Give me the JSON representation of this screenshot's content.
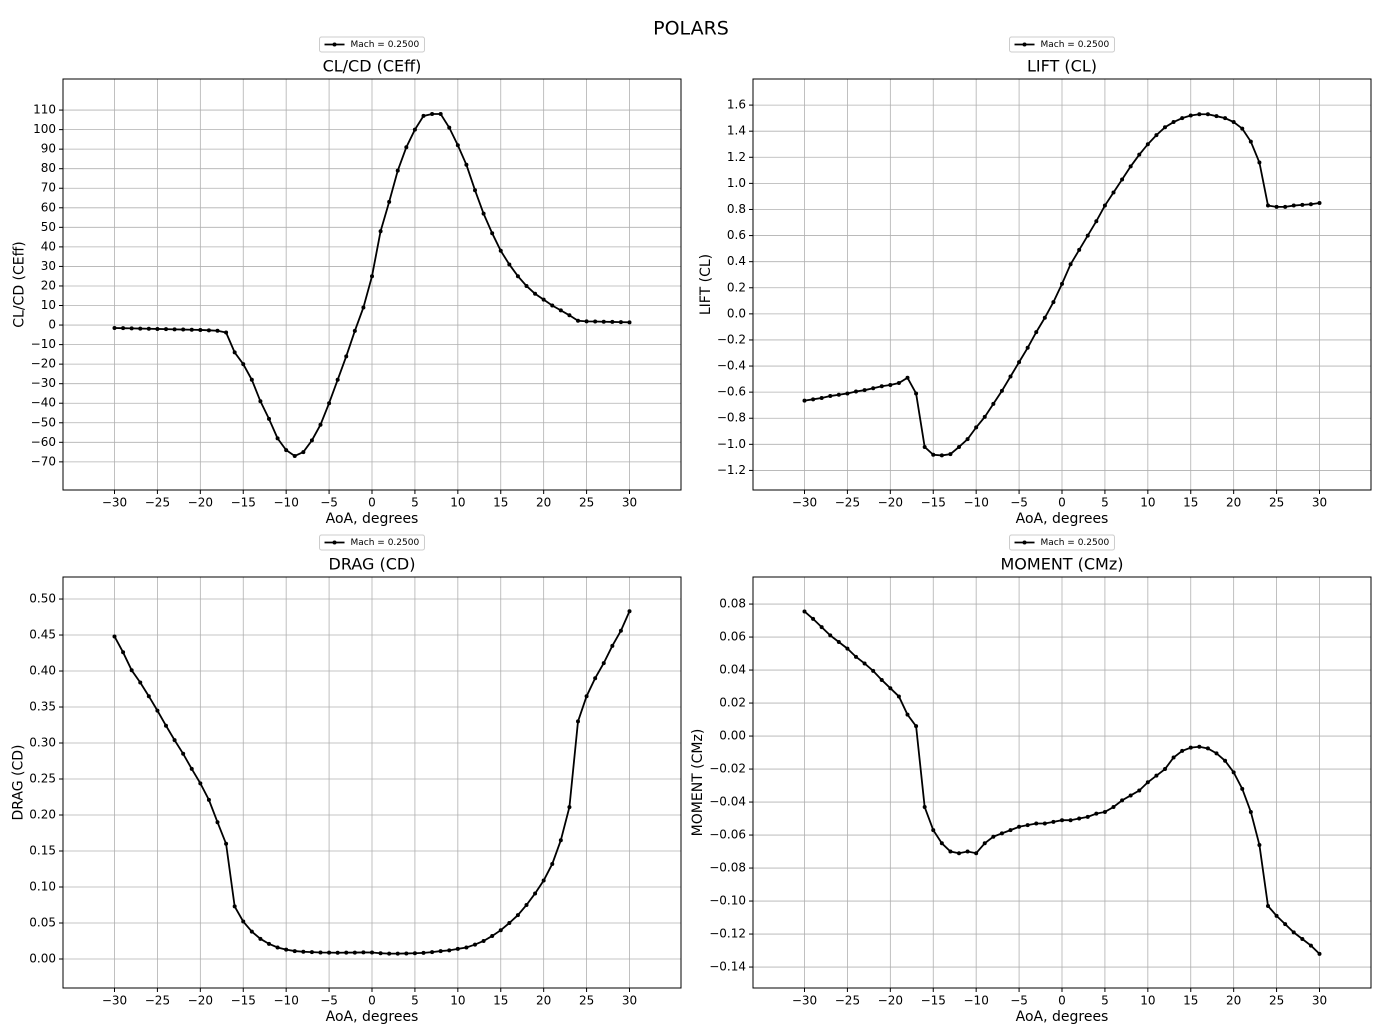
{
  "title": "POLARS",
  "chart_data": [
    {
      "type": "line",
      "title": "CL/CD (CEff)",
      "x_label": "AoA, degrees",
      "y_label": "CL/CD (CEff)",
      "x": [
        -30,
        -29,
        -28,
        -27,
        -26,
        -25,
        -24,
        -23,
        -22,
        -21,
        -20,
        -19,
        -18,
        -17,
        -16,
        -15,
        -14,
        -13,
        -12,
        -11,
        -10,
        -9,
        -8,
        -7,
        -6,
        -5,
        -4,
        -3,
        -2,
        -1,
        0,
        1,
        2,
        3,
        4,
        5,
        6,
        7,
        8,
        9,
        10,
        11,
        12,
        13,
        14,
        15,
        16,
        17,
        18,
        19,
        20,
        21,
        22,
        23,
        24,
        25,
        26,
        27,
        28,
        29,
        30
      ],
      "series": [
        {
          "name": "Mach = 0.2500",
          "color": "#000000",
          "values": [
            -1.5,
            -1.6,
            -1.7,
            -1.8,
            -1.9,
            -2.0,
            -2.1,
            -2.2,
            -2.3,
            -2.4,
            -2.5,
            -2.7,
            -2.9,
            -3.8,
            -14,
            -20,
            -28,
            -39,
            -48,
            -58,
            -64,
            -67,
            -65,
            -59,
            -51,
            -40,
            -28,
            -16,
            -3,
            9,
            25,
            48,
            63,
            79,
            91,
            100,
            107,
            108,
            108,
            101,
            92,
            82,
            69,
            57,
            47,
            38,
            31,
            25,
            20,
            16,
            13,
            10,
            7.5,
            5,
            2.2,
            1.9,
            1.8,
            1.7,
            1.6,
            1.5,
            1.4
          ]
        }
      ],
      "xlim": [
        -36,
        36
      ],
      "ylim": [
        -84.4,
        125.9
      ],
      "xticks": [
        {
          "value": -30,
          "label": "−30"
        },
        {
          "value": -25,
          "label": "−25"
        },
        {
          "value": -20,
          "label": "−20"
        },
        {
          "value": -15,
          "label": "−15"
        },
        {
          "value": -10,
          "label": "−10"
        },
        {
          "value": -5,
          "label": "−5"
        },
        0,
        5,
        10,
        15,
        20,
        25,
        30
      ],
      "yticks": [
        {
          "value": -70,
          "label": "−70"
        },
        {
          "value": -60,
          "label": "−60"
        },
        {
          "value": -50,
          "label": "−50"
        },
        {
          "value": -40,
          "label": "−40"
        },
        {
          "value": -30,
          "label": "−30"
        },
        {
          "value": -20,
          "label": "−20"
        },
        {
          "value": -10,
          "label": "−10"
        },
        0,
        10,
        20,
        30,
        40,
        50,
        60,
        70,
        80,
        90,
        100,
        110
      ],
      "grid": true,
      "legend": "upper center"
    },
    {
      "type": "line",
      "title": "LIFT (CL)",
      "x_label": "AoA, degrees",
      "y_label": "LIFT (CL)",
      "x": [
        -30,
        -29,
        -28,
        -27,
        -26,
        -25,
        -24,
        -23,
        -22,
        -21,
        -20,
        -19,
        -18,
        -17,
        -16,
        -15,
        -14,
        -13,
        -12,
        -11,
        -10,
        -9,
        -8,
        -7,
        -6,
        -5,
        -4,
        -3,
        -2,
        -1,
        0,
        1,
        2,
        3,
        4,
        5,
        6,
        7,
        8,
        9,
        10,
        11,
        12,
        13,
        14,
        15,
        16,
        17,
        18,
        19,
        20,
        21,
        22,
        23,
        24,
        25,
        26,
        27,
        28,
        29,
        30
      ],
      "series": [
        {
          "name": "Mach = 0.2500",
          "color": "#000000",
          "values": [
            -0.665,
            -0.655,
            -0.645,
            -0.63,
            -0.62,
            -0.61,
            -0.595,
            -0.585,
            -0.57,
            -0.555,
            -0.545,
            -0.53,
            -0.49,
            -0.61,
            -1.02,
            -1.08,
            -1.085,
            -1.075,
            -1.02,
            -0.96,
            -0.87,
            -0.79,
            -0.69,
            -0.59,
            -0.48,
            -0.37,
            -0.26,
            -0.14,
            -0.03,
            0.09,
            0.23,
            0.38,
            0.49,
            0.6,
            0.71,
            0.83,
            0.93,
            1.03,
            1.13,
            1.22,
            1.3,
            1.37,
            1.43,
            1.47,
            1.5,
            1.52,
            1.53,
            1.53,
            1.515,
            1.5,
            1.47,
            1.42,
            1.32,
            1.16,
            0.83,
            0.82,
            0.82,
            0.83,
            0.835,
            0.84,
            0.85
          ]
        }
      ],
      "xlim": [
        -36,
        36
      ],
      "ylim": [
        -1.35,
        1.8
      ],
      "xticks": [
        {
          "value": -30,
          "label": "−30"
        },
        {
          "value": -25,
          "label": "−25"
        },
        {
          "value": -20,
          "label": "−20"
        },
        {
          "value": -15,
          "label": "−15"
        },
        {
          "value": -10,
          "label": "−10"
        },
        {
          "value": -5,
          "label": "−5"
        },
        0,
        5,
        10,
        15,
        20,
        25,
        30
      ],
      "yticks": [
        {
          "value": -1.2,
          "label": "−1.2"
        },
        {
          "value": -1.0,
          "label": "−1.0"
        },
        {
          "value": -0.8,
          "label": "−0.8"
        },
        {
          "value": -0.6,
          "label": "−0.6"
        },
        {
          "value": -0.4,
          "label": "−0.4"
        },
        {
          "value": -0.2,
          "label": "−0.2"
        },
        {
          "value": 0,
          "label": "0.0"
        },
        0.2,
        0.4,
        0.6,
        0.8,
        {
          "value": 1,
          "label": "1.0"
        },
        1.2,
        1.4,
        1.6
      ],
      "grid": true,
      "legend": "upper center"
    },
    {
      "type": "line",
      "title": "DRAG (CD)",
      "x_label": "AoA, degrees",
      "y_label": "DRAG (CD)",
      "x": [
        -30,
        -29,
        -28,
        -27,
        -26,
        -25,
        -24,
        -23,
        -22,
        -21,
        -20,
        -19,
        -18,
        -17,
        -16,
        -15,
        -14,
        -13,
        -12,
        -11,
        -10,
        -9,
        -8,
        -7,
        -6,
        -5,
        -4,
        -3,
        -2,
        -1,
        0,
        1,
        2,
        3,
        4,
        5,
        6,
        7,
        8,
        9,
        10,
        11,
        12,
        13,
        14,
        15,
        16,
        17,
        18,
        19,
        20,
        21,
        22,
        23,
        24,
        25,
        26,
        27,
        28,
        29,
        30
      ],
      "series": [
        {
          "name": "Mach = 0.2500",
          "color": "#000000",
          "values": [
            0.448,
            0.426,
            0.401,
            0.384,
            0.365,
            0.345,
            0.324,
            0.304,
            0.285,
            0.264,
            0.244,
            0.221,
            0.19,
            0.16,
            0.073,
            0.052,
            0.038,
            0.028,
            0.021,
            0.016,
            0.013,
            0.011,
            0.01,
            0.0095,
            0.009,
            0.0088,
            0.0087,
            0.0088,
            0.0089,
            0.0091,
            0.009,
            0.008,
            0.0075,
            0.0075,
            0.0077,
            0.008,
            0.0085,
            0.0095,
            0.011,
            0.012,
            0.014,
            0.016,
            0.02,
            0.025,
            0.032,
            0.04,
            0.05,
            0.061,
            0.075,
            0.091,
            0.109,
            0.132,
            0.165,
            0.211,
            0.33,
            0.365,
            0.39,
            0.411,
            0.435,
            0.456,
            0.483
          ]
        }
      ],
      "xlim": [
        -36,
        36
      ],
      "ylim": [
        -0.0403,
        0.5306
      ],
      "xticks": [
        {
          "value": -30,
          "label": "−30"
        },
        {
          "value": -25,
          "label": "−25"
        },
        {
          "value": -20,
          "label": "−20"
        },
        {
          "value": -15,
          "label": "−15"
        },
        {
          "value": -10,
          "label": "−10"
        },
        {
          "value": -5,
          "label": "−5"
        },
        0,
        5,
        10,
        15,
        20,
        25,
        30
      ],
      "yticks": [
        {
          "value": 0,
          "label": "0.00"
        },
        0.05,
        {
          "value": 0.1,
          "label": "0.10"
        },
        0.15,
        {
          "value": 0.2,
          "label": "0.20"
        },
        0.25,
        {
          "value": 0.3,
          "label": "0.30"
        },
        0.35,
        {
          "value": 0.4,
          "label": "0.40"
        },
        0.45,
        {
          "value": 0.5,
          "label": "0.50"
        }
      ],
      "grid": true,
      "legend": "upper center"
    },
    {
      "type": "line",
      "title": "MOMENT (CMz)",
      "x_label": "AoA, degrees",
      "y_label": "MOMENT (CMz)",
      "x": [
        -30,
        -29,
        -28,
        -27,
        -26,
        -25,
        -24,
        -23,
        -22,
        -21,
        -20,
        -19,
        -18,
        -17,
        -16,
        -15,
        -14,
        -13,
        -12,
        -11,
        -10,
        -9,
        -8,
        -7,
        -6,
        -5,
        -4,
        -3,
        -2,
        -1,
        0,
        1,
        2,
        3,
        4,
        5,
        6,
        7,
        8,
        9,
        10,
        11,
        12,
        13,
        14,
        15,
        16,
        17,
        18,
        19,
        20,
        21,
        22,
        23,
        24,
        25,
        26,
        27,
        28,
        29,
        30
      ],
      "series": [
        {
          "name": "Mach = 0.2500",
          "color": "#000000",
          "values": [
            0.0755,
            0.071,
            0.066,
            0.061,
            0.057,
            0.053,
            0.048,
            0.044,
            0.0395,
            0.034,
            0.029,
            0.024,
            0.013,
            0.006,
            -0.043,
            -0.057,
            -0.065,
            -0.07,
            -0.071,
            -0.07,
            -0.071,
            -0.065,
            -0.061,
            -0.059,
            -0.057,
            -0.055,
            -0.054,
            -0.053,
            -0.053,
            -0.052,
            -0.051,
            -0.051,
            -0.05,
            -0.049,
            -0.047,
            -0.046,
            -0.043,
            -0.039,
            -0.036,
            -0.033,
            -0.028,
            -0.024,
            -0.02,
            -0.013,
            -0.009,
            -0.007,
            -0.0065,
            -0.0075,
            -0.0105,
            -0.015,
            -0.022,
            -0.032,
            -0.046,
            -0.066,
            -0.103,
            -0.109,
            -0.114,
            -0.119,
            -0.123,
            -0.127,
            -0.132
          ]
        }
      ],
      "xlim": [
        -36,
        36
      ],
      "ylim": [
        -0.1527,
        0.0964
      ],
      "xticks": [
        {
          "value": -30,
          "label": "−30"
        },
        {
          "value": -25,
          "label": "−25"
        },
        {
          "value": -20,
          "label": "−20"
        },
        {
          "value": -15,
          "label": "−15"
        },
        {
          "value": -10,
          "label": "−10"
        },
        {
          "value": -5,
          "label": "−5"
        },
        0,
        5,
        10,
        15,
        20,
        25,
        30
      ],
      "yticks": [
        {
          "value": -0.14,
          "label": "−0.14"
        },
        {
          "value": -0.12,
          "label": "−0.12"
        },
        {
          "value": -0.1,
          "label": "−0.10"
        },
        {
          "value": -0.08,
          "label": "−0.08"
        },
        {
          "value": -0.06,
          "label": "−0.06"
        },
        {
          "value": -0.04,
          "label": "−0.04"
        },
        {
          "value": -0.02,
          "label": "−0.02"
        },
        {
          "value": 0,
          "label": "0.00"
        },
        0.02,
        0.04,
        0.06,
        0.08
      ],
      "grid": true,
      "legend": "upper center"
    }
  ]
}
